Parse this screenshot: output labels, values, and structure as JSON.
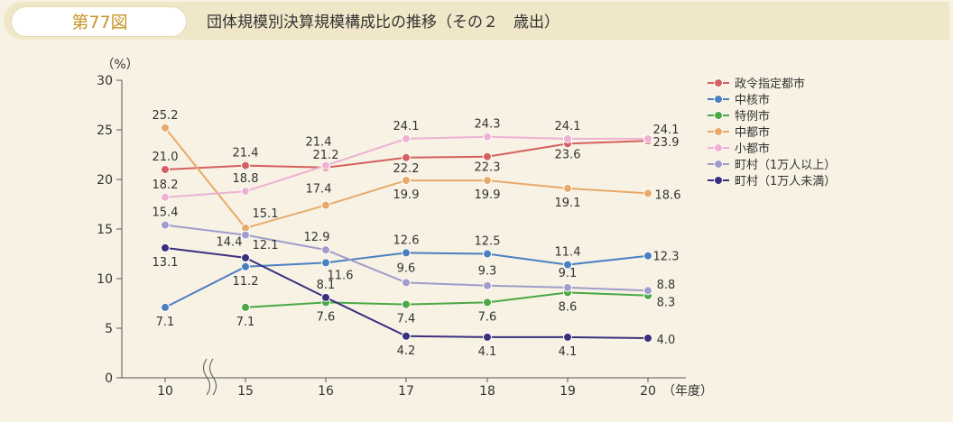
{
  "header": {
    "figure_number": "第77図",
    "title": "団体規模別決算規模構成比の推移（その２　歳出）"
  },
  "chart_data": {
    "type": "line",
    "title": "団体規模別決算規模構成比の推移（その２　歳出）",
    "ylabel": "（%）",
    "xlabel": "（年度）",
    "categories": [
      "10",
      "15",
      "16",
      "17",
      "18",
      "19",
      "20"
    ],
    "ylim": [
      0,
      30
    ],
    "yticks": [
      "0",
      "5",
      "10",
      "15",
      "20",
      "25",
      "30"
    ],
    "grid": false,
    "axis_break": "between 10 and 15",
    "legend_position": "right",
    "series": [
      {
        "name": "政令指定都市",
        "color": "#d4605f",
        "values": [
          21.0,
          21.4,
          21.2,
          22.2,
          22.3,
          23.6,
          23.9
        ],
        "labels": [
          "21.0",
          "21.4",
          "21.2",
          "22.2",
          "22.3",
          "23.6",
          "23.9"
        ]
      },
      {
        "name": "中核市",
        "color": "#4a80c2",
        "values": [
          7.1,
          11.2,
          11.6,
          12.6,
          12.5,
          11.4,
          12.3
        ],
        "labels": [
          "7.1",
          "11.2",
          "11.6",
          "12.6",
          "12.5",
          "11.4",
          "12.3"
        ]
      },
      {
        "name": "特例市",
        "color": "#4aa845",
        "values": [
          null,
          7.1,
          7.6,
          7.4,
          7.6,
          8.6,
          8.3
        ],
        "labels": [
          "",
          "7.1",
          "7.6",
          "7.4",
          "7.6",
          "8.6",
          "8.3"
        ]
      },
      {
        "name": "中都市",
        "color": "#e8a96a",
        "values": [
          25.2,
          15.1,
          17.4,
          19.9,
          19.9,
          19.1,
          18.6
        ],
        "labels": [
          "25.2",
          "15.1",
          "17.4",
          "19.9",
          "19.9",
          "19.1",
          "18.6"
        ]
      },
      {
        "name": "小都市",
        "color": "#eeb1d3",
        "values": [
          18.2,
          18.8,
          21.4,
          24.1,
          24.3,
          24.1,
          24.1
        ],
        "labels": [
          "18.2",
          "18.8",
          "21.4",
          "24.1",
          "24.3",
          "24.1",
          "24.1"
        ]
      },
      {
        "name": "町村（1万人以上）",
        "color": "#a09ccb",
        "values": [
          15.4,
          14.4,
          12.9,
          9.6,
          9.3,
          9.1,
          8.8
        ],
        "labels": [
          "15.4",
          "14.4",
          "12.9",
          "9.6",
          "9.3",
          "9.1",
          "8.8"
        ]
      },
      {
        "name": "町村（1万人未満）",
        "color": "#3b2f7d",
        "values": [
          13.1,
          12.1,
          8.1,
          4.2,
          4.1,
          4.1,
          4.0
        ],
        "labels": [
          "13.1",
          "12.1",
          "8.1",
          "4.2",
          "4.1",
          "4.1",
          "4.0"
        ]
      }
    ]
  }
}
